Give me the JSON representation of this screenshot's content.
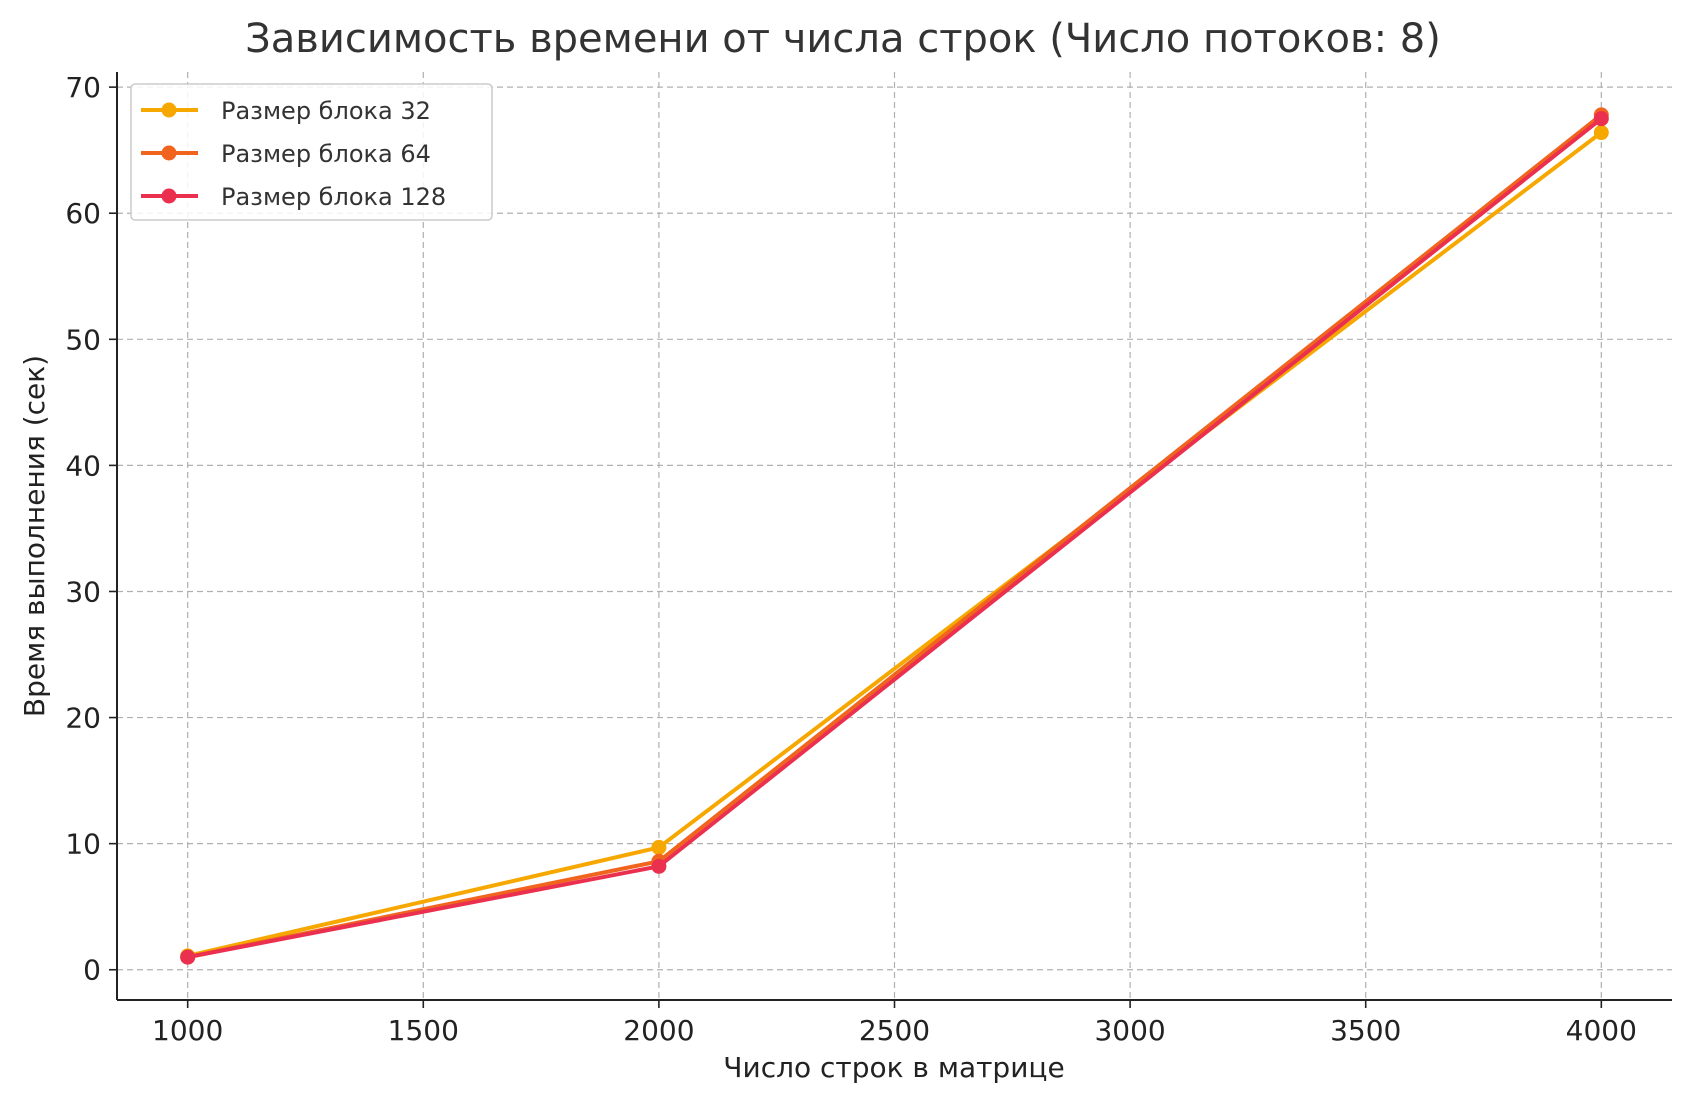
{
  "chart_data": {
    "type": "line",
    "title": "Зависимость времени от числа строк (Число потоков: 8)",
    "xlabel": "Число строк в матрице",
    "ylabel": "Время выполнения (сек)",
    "x": [
      1000,
      2000,
      4000
    ],
    "xlim": [
      850,
      4150
    ],
    "ylim": [
      -2.4,
      71.2
    ],
    "xticks": [
      1000,
      1500,
      2000,
      2500,
      3000,
      3500,
      4000
    ],
    "yticks": [
      0,
      10,
      20,
      30,
      40,
      50,
      60,
      70
    ],
    "grid": true,
    "legend_position": "top-left",
    "series": [
      {
        "name": "Размер блока 32",
        "color": "#f6a800",
        "values": [
          1.1,
          9.7,
          66.4
        ]
      },
      {
        "name": "Размер блока 64",
        "color": "#f0641e",
        "values": [
          1.0,
          8.6,
          67.8
        ]
      },
      {
        "name": "Размер блока 128",
        "color": "#ea304e",
        "values": [
          1.0,
          8.2,
          67.5
        ]
      }
    ]
  }
}
